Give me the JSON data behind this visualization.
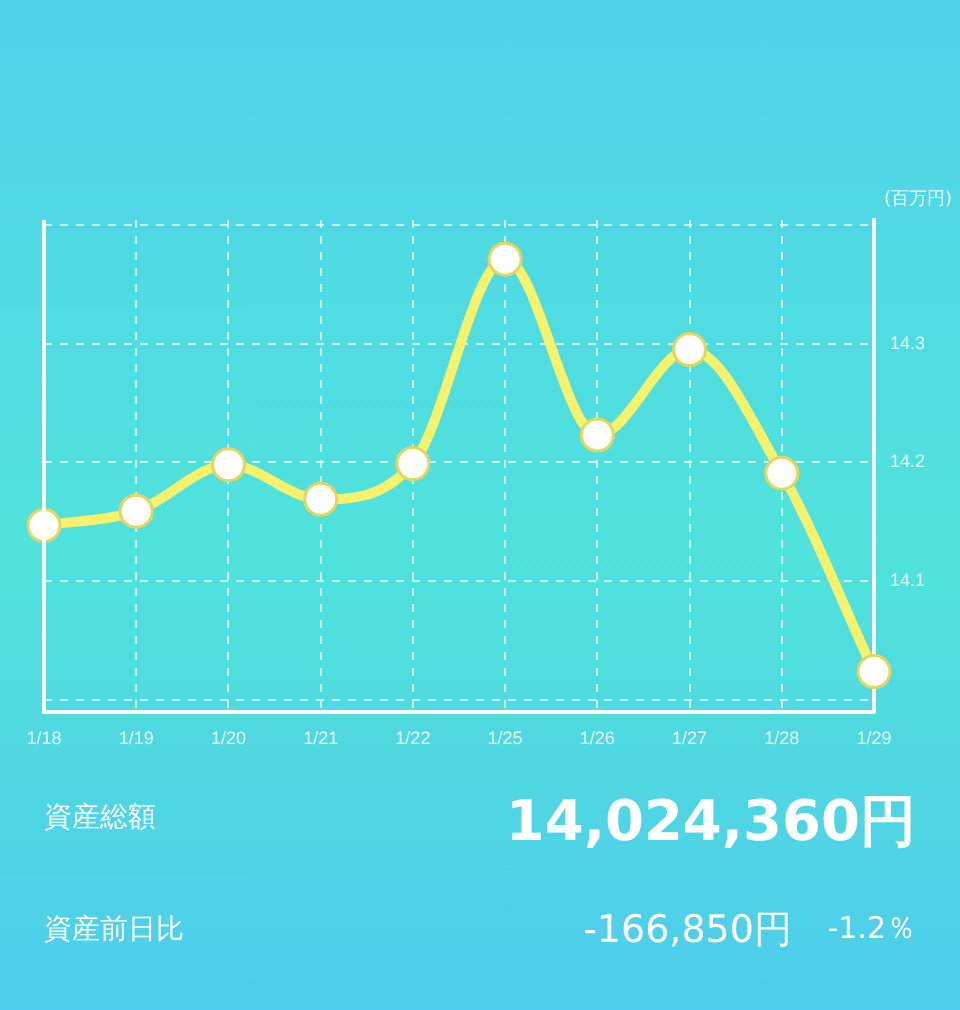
{
  "chart_data": {
    "type": "line",
    "ylabel": "(百万円)",
    "categories": [
      "1/18",
      "1/19",
      "1/20",
      "1/21",
      "1/22",
      "1/25",
      "1/26",
      "1/27",
      "1/28",
      "1/29"
    ],
    "series": [
      {
        "color": "#f6f26c",
        "values": [
          14.147,
          14.159,
          14.198,
          14.169,
          14.199,
          14.371,
          14.223,
          14.295,
          14.191,
          14.024
        ]
      }
    ],
    "ylim": [
      13.99,
      14.404
    ],
    "yticks": [
      {
        "value": 14.0,
        "label": null
      },
      14.1,
      14.2,
      14.3,
      {
        "value": 14.4,
        "label": null
      }
    ],
    "grid": true,
    "legend": false,
    "marker": "circle",
    "line_style": "solid",
    "annotations": [
      "資産総額",
      "14,024,360円",
      "資産前日比",
      "-166,850円",
      "-1.2％"
    ]
  }
}
